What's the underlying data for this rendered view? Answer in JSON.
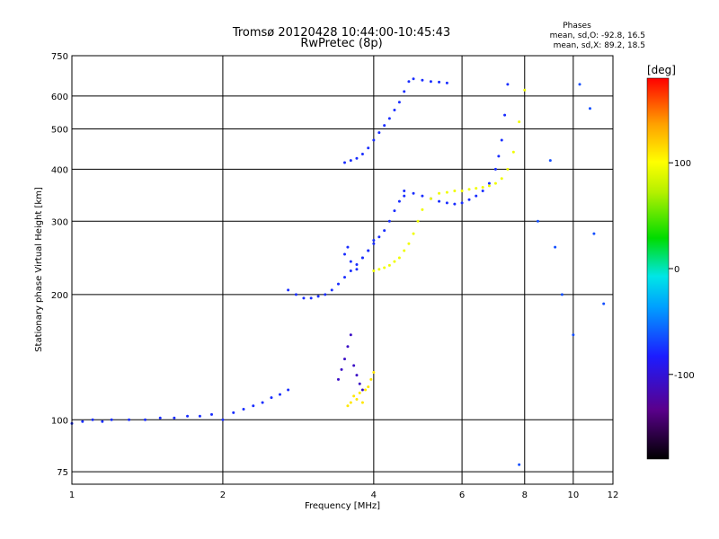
{
  "chart_data": {
    "type": "scatter",
    "title": "Tromsø 20120428 10:44:00-10:45:43",
    "subtitle": "RwPretec (8p)",
    "xlabel": "Frequency [MHz]",
    "ylabel": "Stationary phase Virtual Height [km]",
    "x_scale": "log",
    "y_scale": "log",
    "xlim": [
      1,
      12
    ],
    "ylim": [
      70,
      750
    ],
    "x_ticks": [
      1,
      2,
      4,
      6,
      8,
      10,
      12
    ],
    "y_ticks": [
      75,
      100,
      200,
      300,
      400,
      500,
      600,
      750
    ],
    "grid": true,
    "phase_stats": {
      "title": "Phases",
      "o_line": "mean, sd,O: -92.8, 16.5",
      "x_line": "mean, sd,X:  89.2, 18.5"
    },
    "colorbar": {
      "label": "[deg]",
      "range": [
        -180,
        180
      ],
      "ticks": [
        100,
        0,
        -100
      ],
      "colors": [
        "#000000",
        "#5a008c",
        "#1c1cff",
        "#00a0ff",
        "#00e6e6",
        "#00dc00",
        "#b4f000",
        "#ffff00",
        "#ffa000",
        "#ff0000"
      ]
    },
    "series": [
      {
        "phase_deg": -95,
        "x": [
          1.0,
          1.05,
          1.1,
          1.15,
          1.2,
          1.3,
          1.4,
          1.5,
          1.6,
          1.7,
          1.8,
          1.9,
          2.0,
          2.1,
          2.2,
          2.3,
          2.4,
          2.5,
          2.6,
          2.7
        ],
        "y": [
          98,
          99,
          100,
          99,
          100,
          100,
          100,
          101,
          101,
          102,
          102,
          103,
          100,
          104,
          106,
          108,
          110,
          113,
          115,
          118
        ]
      },
      {
        "phase_deg": -95,
        "x": [
          2.7,
          2.8,
          2.9,
          3.0,
          3.1,
          3.2,
          3.3,
          3.4,
          3.5,
          3.6,
          3.7,
          3.8,
          3.9,
          4.0,
          4.1,
          4.2,
          4.3,
          4.4,
          4.5,
          4.6
        ],
        "y": [
          205,
          200,
          196,
          196,
          198,
          200,
          205,
          212,
          220,
          228,
          236,
          245,
          255,
          265,
          275,
          285,
          300,
          318,
          335,
          345
        ]
      },
      {
        "phase_deg": -95,
        "x": [
          3.5,
          3.6,
          3.7,
          3.8,
          3.9,
          4.0,
          4.1,
          4.2,
          4.3,
          4.4,
          4.5,
          4.6,
          4.7,
          4.8,
          5.0,
          5.2,
          5.4,
          5.6
        ],
        "y": [
          415,
          420,
          425,
          435,
          450,
          470,
          490,
          510,
          530,
          555,
          580,
          615,
          650,
          660,
          655,
          650,
          648,
          645
        ]
      },
      {
        "phase_deg": -95,
        "x": [
          4.6,
          4.8,
          5.0,
          5.2,
          5.4,
          5.6,
          5.8,
          6.0,
          6.2,
          6.4,
          6.6,
          6.8,
          7.0,
          7.1,
          7.2,
          7.3,
          7.4
        ],
        "y": [
          355,
          350,
          345,
          340,
          335,
          332,
          330,
          332,
          338,
          345,
          355,
          370,
          400,
          430,
          470,
          540,
          640
        ]
      },
      {
        "phase_deg": -120,
        "x": [
          3.4,
          3.45,
          3.5,
          3.55,
          3.6,
          3.65,
          3.7,
          3.75,
          3.8
        ],
        "y": [
          125,
          132,
          140,
          150,
          160,
          135,
          128,
          122,
          118
        ]
      },
      {
        "phase_deg": -95,
        "x": [
          3.5,
          3.55,
          3.6,
          3.7,
          3.8,
          3.9,
          4.0
        ],
        "y": [
          250,
          260,
          240,
          230,
          245,
          255,
          270
        ]
      },
      {
        "phase_deg": 92,
        "x": [
          4.0,
          4.1,
          4.2,
          4.3,
          4.4,
          4.5,
          4.6,
          4.7,
          4.8,
          4.9,
          5.0,
          5.2,
          5.4,
          5.6,
          5.8,
          6.0,
          6.2,
          6.4,
          6.6,
          6.8,
          7.0,
          7.2,
          7.4,
          7.6,
          7.8,
          8.0
        ],
        "y": [
          228,
          230,
          232,
          235,
          240,
          245,
          255,
          265,
          280,
          300,
          320,
          340,
          350,
          352,
          355,
          355,
          358,
          360,
          362,
          365,
          370,
          380,
          400,
          440,
          520,
          620
        ]
      },
      {
        "phase_deg": 110,
        "x": [
          3.55,
          3.6,
          3.65,
          3.7,
          3.75,
          3.8,
          3.85,
          3.9,
          3.95,
          4.0
        ],
        "y": [
          108,
          110,
          114,
          112,
          116,
          110,
          118,
          120,
          125,
          130
        ]
      },
      {
        "phase_deg": -85,
        "x": [
          7.8,
          8.5,
          9.0,
          9.2,
          9.5,
          10.0,
          10.3,
          10.8,
          11.0,
          11.5
        ],
        "y": [
          78,
          300,
          420,
          260,
          200,
          160,
          640,
          560,
          280,
          190
        ]
      }
    ]
  }
}
